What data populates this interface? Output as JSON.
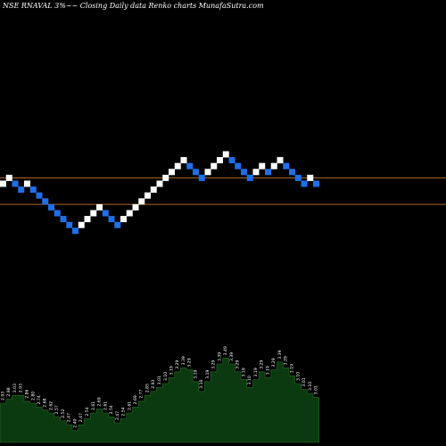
{
  "title": "NSE RNAVAL 3%~~ Closing Daily data  Renko  charts MunafaSutra.com",
  "colors": {
    "background": "#000000",
    "up_brick": "#ffffff",
    "down_brick": "#1e6fe8",
    "reference_line": "#b06a2a",
    "volume_fill": "#0c3a10",
    "volume_edge": "#2a6a2a",
    "volume_label": "#ffffff"
  },
  "chart_data": {
    "type": "renko",
    "brick_size": "3%",
    "reference_levels": [
      1,
      -3.5
    ],
    "bricks": [
      {
        "level": 0,
        "dir": "up"
      },
      {
        "level": 1,
        "dir": "up"
      },
      {
        "level": 0,
        "dir": "down"
      },
      {
        "level": -1,
        "dir": "down"
      },
      {
        "level": 0,
        "dir": "up"
      },
      {
        "level": -1,
        "dir": "down"
      },
      {
        "level": -2,
        "dir": "down"
      },
      {
        "level": -3,
        "dir": "down"
      },
      {
        "level": -4,
        "dir": "down"
      },
      {
        "level": -5,
        "dir": "down"
      },
      {
        "level": -6,
        "dir": "down"
      },
      {
        "level": -7,
        "dir": "down"
      },
      {
        "level": -8,
        "dir": "down"
      },
      {
        "level": -7,
        "dir": "up"
      },
      {
        "level": -6,
        "dir": "up"
      },
      {
        "level": -5,
        "dir": "up"
      },
      {
        "level": -4,
        "dir": "up"
      },
      {
        "level": -5,
        "dir": "down"
      },
      {
        "level": -6,
        "dir": "down"
      },
      {
        "level": -7,
        "dir": "down"
      },
      {
        "level": -6,
        "dir": "up"
      },
      {
        "level": -5,
        "dir": "up"
      },
      {
        "level": -4,
        "dir": "up"
      },
      {
        "level": -3,
        "dir": "up"
      },
      {
        "level": -2,
        "dir": "up"
      },
      {
        "level": -1,
        "dir": "up"
      },
      {
        "level": 0,
        "dir": "up"
      },
      {
        "level": 1,
        "dir": "up"
      },
      {
        "level": 2,
        "dir": "up"
      },
      {
        "level": 3,
        "dir": "up"
      },
      {
        "level": 4,
        "dir": "up"
      },
      {
        "level": 3,
        "dir": "down"
      },
      {
        "level": 2,
        "dir": "down"
      },
      {
        "level": 1,
        "dir": "down"
      },
      {
        "level": 2,
        "dir": "up"
      },
      {
        "level": 3,
        "dir": "up"
      },
      {
        "level": 4,
        "dir": "up"
      },
      {
        "level": 5,
        "dir": "up"
      },
      {
        "level": 4,
        "dir": "down"
      },
      {
        "level": 3,
        "dir": "down"
      },
      {
        "level": 2,
        "dir": "down"
      },
      {
        "level": 1,
        "dir": "down"
      },
      {
        "level": 2,
        "dir": "up"
      },
      {
        "level": 3,
        "dir": "up"
      },
      {
        "level": 2,
        "dir": "down"
      },
      {
        "level": 3,
        "dir": "up"
      },
      {
        "level": 4,
        "dir": "up"
      },
      {
        "level": 3,
        "dir": "down"
      },
      {
        "level": 2,
        "dir": "down"
      },
      {
        "level": 1,
        "dir": "down"
      },
      {
        "level": 0,
        "dir": "down"
      },
      {
        "level": 1,
        "dir": "up"
      },
      {
        "level": 0,
        "dir": "down"
      }
    ],
    "volume": [
      40,
      44,
      48,
      48,
      42,
      40,
      36,
      33,
      30,
      26,
      22,
      18,
      12,
      18,
      24,
      30,
      34,
      30,
      26,
      20,
      24,
      30,
      36,
      42,
      48,
      52,
      56,
      60,
      66,
      72,
      76,
      74,
      62,
      52,
      62,
      72,
      80,
      86,
      80,
      72,
      64,
      56,
      64,
      72,
      66,
      74,
      82,
      76,
      68,
      60,
      54,
      50,
      46
    ],
    "volume_labels": [
      "2.93",
      "2.98",
      "3.03",
      "2.93",
      "2.86",
      "2.80",
      "2.74",
      "2.68",
      "2.62",
      "2.57",
      "2.52",
      "2.47",
      "2.40",
      "2.47",
      "2.54",
      "2.61",
      "2.69",
      "2.61",
      "2.54",
      "2.47",
      "2.54",
      "2.61",
      "2.69",
      "2.77",
      "2.85",
      "2.93",
      "3.01",
      "3.10",
      "3.19",
      "3.29",
      "3.39",
      "3.29",
      "3.19",
      "3.10",
      "3.19",
      "3.29",
      "3.39",
      "3.49",
      "3.39",
      "3.29",
      "3.19",
      "3.10",
      "3.19",
      "3.29",
      "3.19",
      "3.29",
      "3.39",
      "3.29",
      "3.19",
      "3.10",
      "3.01",
      "3.10",
      "3.01"
    ]
  }
}
